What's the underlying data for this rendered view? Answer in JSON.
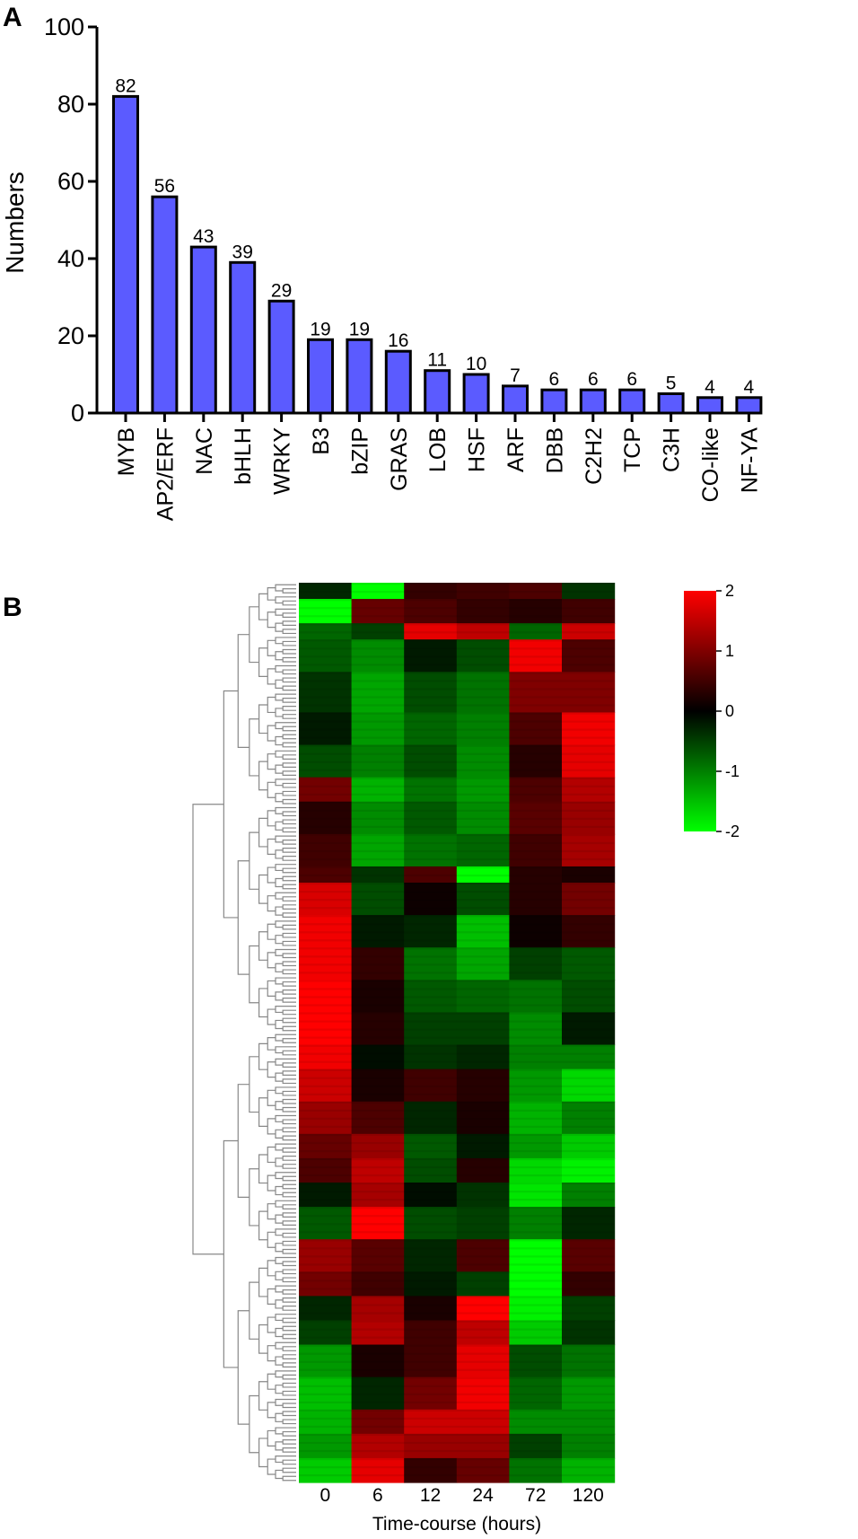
{
  "panels": {
    "a": "A",
    "b": "B"
  },
  "chart_data": [
    {
      "type": "bar",
      "title": "",
      "xlabel": "",
      "ylabel": "Numbers",
      "ylim": [
        0,
        100
      ],
      "yticks": [
        0,
        20,
        40,
        60,
        80,
        100
      ],
      "categories": [
        "MYB",
        "AP2/ERF",
        "NAC",
        "bHLH",
        "WRKY",
        "B3",
        "bZIP",
        "GRAS",
        "LOB",
        "HSF",
        "ARF",
        "DBB",
        "C2H2",
        "TCP",
        "C3H",
        "CO-like",
        "NF-YA"
      ],
      "values": [
        82,
        56,
        43,
        39,
        29,
        19,
        19,
        16,
        11,
        10,
        7,
        6,
        6,
        6,
        5,
        4,
        4
      ],
      "bar_color": "#5b5bff",
      "grid": false
    },
    {
      "type": "heatmap",
      "title": "",
      "xlabel": "Time-course (hours)",
      "ylabel": "",
      "x": [
        "0",
        "6",
        "12",
        "24",
        "72",
        "120"
      ],
      "colorbar": {
        "min": -2,
        "max": 2,
        "ticks": [
          2,
          1,
          0,
          -1,
          -2
        ],
        "low_color": "#00ff00",
        "mid_color": "#000000",
        "high_color": "#ff0000"
      },
      "dendrogram": "rows",
      "row_blocks": [
        {
          "rows": 4,
          "values": [
            -0.3,
            -2.0,
            0.4,
            0.5,
            0.6,
            -0.4
          ]
        },
        {
          "rows": 6,
          "values": [
            -2.0,
            0.8,
            0.6,
            0.4,
            0.3,
            0.5
          ]
        },
        {
          "rows": 4,
          "values": [
            -0.8,
            -0.5,
            1.8,
            1.5,
            -0.8,
            1.6
          ]
        },
        {
          "rows": 8,
          "values": [
            -0.7,
            -1.1,
            -0.2,
            -0.6,
            1.9,
            0.6
          ]
        },
        {
          "rows": 10,
          "values": [
            -0.4,
            -1.3,
            -0.6,
            -0.9,
            1.0,
            1.0
          ]
        },
        {
          "rows": 8,
          "values": [
            -0.2,
            -1.2,
            -0.8,
            -1.0,
            0.6,
            1.9
          ]
        },
        {
          "rows": 8,
          "values": [
            -0.6,
            -1.0,
            -0.6,
            -1.1,
            0.3,
            1.8
          ]
        },
        {
          "rows": 6,
          "values": [
            0.9,
            -1.4,
            -0.9,
            -1.2,
            0.6,
            1.4
          ]
        },
        {
          "rows": 8,
          "values": [
            0.3,
            -1.1,
            -0.7,
            -1.1,
            0.7,
            1.2
          ]
        },
        {
          "rows": 8,
          "values": [
            0.5,
            -1.3,
            -0.9,
            -0.8,
            0.5,
            1.3
          ]
        },
        {
          "rows": 4,
          "values": [
            0.6,
            -0.4,
            0.6,
            -2.0,
            0.3,
            0.2
          ]
        },
        {
          "rows": 8,
          "values": [
            1.7,
            -0.6,
            0.1,
            -0.6,
            0.3,
            0.9
          ]
        },
        {
          "rows": 8,
          "values": [
            1.9,
            -0.2,
            -0.3,
            -1.5,
            0.1,
            0.4
          ]
        },
        {
          "rows": 8,
          "values": [
            1.9,
            0.4,
            -0.9,
            -1.3,
            -0.5,
            -0.7
          ]
        },
        {
          "rows": 8,
          "values": [
            2.0,
            0.2,
            -0.7,
            -0.8,
            -0.9,
            -0.6
          ]
        },
        {
          "rows": 8,
          "values": [
            2.0,
            0.3,
            -0.5,
            -0.5,
            -1.1,
            -0.2
          ]
        },
        {
          "rows": 6,
          "values": [
            1.9,
            -0.1,
            -0.4,
            -0.3,
            -1.0,
            -1.0
          ]
        },
        {
          "rows": 8,
          "values": [
            1.6,
            0.2,
            0.5,
            0.3,
            -1.2,
            -1.7
          ]
        },
        {
          "rows": 8,
          "values": [
            1.2,
            0.6,
            -0.3,
            0.2,
            -1.4,
            -1.0
          ]
        },
        {
          "rows": 6,
          "values": [
            0.8,
            1.2,
            -0.7,
            -0.2,
            -1.2,
            -1.6
          ]
        },
        {
          "rows": 6,
          "values": [
            0.6,
            1.5,
            -0.6,
            0.3,
            -1.7,
            -1.9
          ]
        },
        {
          "rows": 6,
          "values": [
            -0.2,
            1.3,
            -0.1,
            -0.4,
            -1.8,
            -1.0
          ]
        },
        {
          "rows": 8,
          "values": [
            -0.7,
            2.0,
            -0.6,
            -0.5,
            -1.0,
            -0.3
          ]
        },
        {
          "rows": 8,
          "values": [
            1.2,
            0.7,
            -0.3,
            0.6,
            -2.0,
            0.7
          ]
        },
        {
          "rows": 6,
          "values": [
            0.9,
            0.5,
            -0.2,
            -0.5,
            -2.0,
            0.4
          ]
        },
        {
          "rows": 6,
          "values": [
            -0.3,
            1.3,
            0.2,
            2.0,
            -1.9,
            -0.5
          ]
        },
        {
          "rows": 6,
          "values": [
            -0.5,
            1.4,
            0.5,
            1.5,
            -1.6,
            -0.4
          ]
        },
        {
          "rows": 8,
          "values": [
            -1.2,
            0.2,
            0.5,
            1.8,
            -0.6,
            -0.9
          ]
        },
        {
          "rows": 8,
          "values": [
            -1.5,
            -0.3,
            0.9,
            1.9,
            -0.8,
            -1.2
          ]
        },
        {
          "rows": 6,
          "values": [
            -1.4,
            0.9,
            1.6,
            1.6,
            -1.1,
            -1.1
          ]
        },
        {
          "rows": 6,
          "values": [
            -1.2,
            1.4,
            1.2,
            1.2,
            -0.5,
            -1.0
          ]
        },
        {
          "rows": 6,
          "values": [
            -1.6,
            1.8,
            0.4,
            0.8,
            -0.9,
            -1.4
          ]
        }
      ]
    }
  ]
}
